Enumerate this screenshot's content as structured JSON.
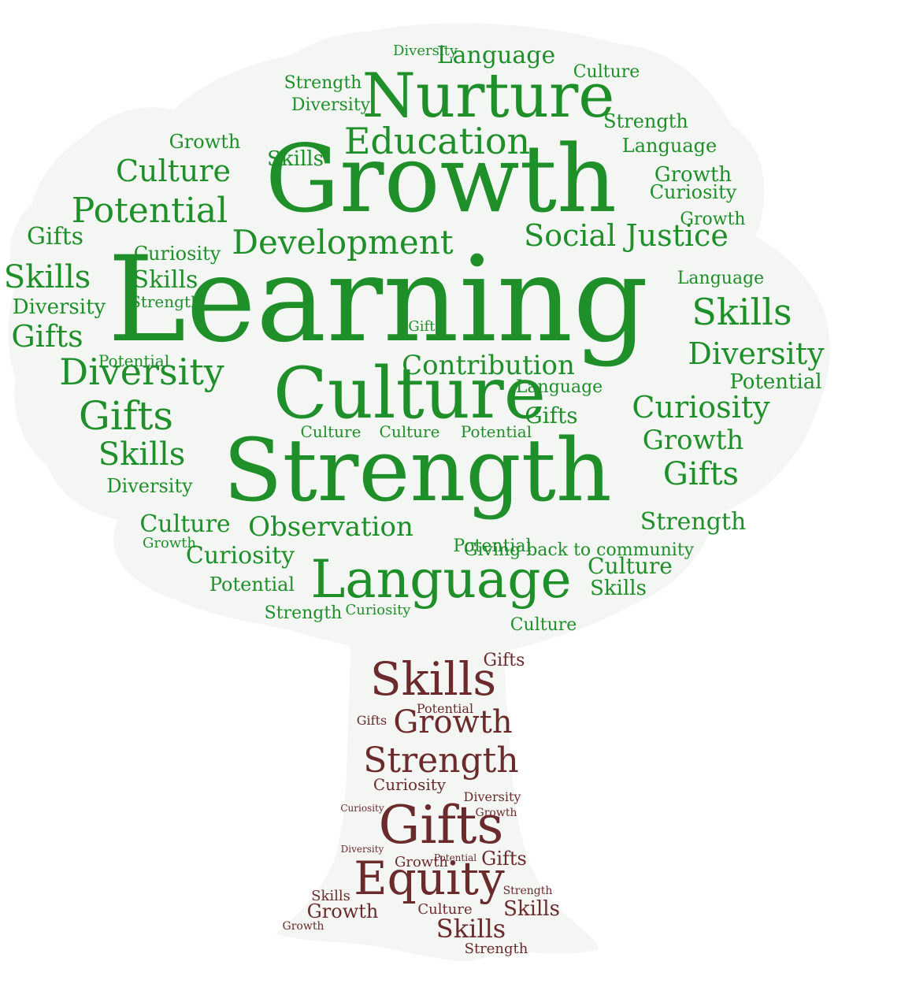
{
  "colors": {
    "background": "#ffffff",
    "canopy_fill": "#f3f6f3",
    "green": "#1f8f2a",
    "brown": "#6b2a2c"
  },
  "canopy_words": [
    {
      "text": "Learning"
    },
    {
      "text": "Growth"
    },
    {
      "text": "Strength"
    },
    {
      "text": "Culture"
    },
    {
      "text": "Nurture"
    },
    {
      "text": "Language"
    },
    {
      "text": "Education"
    },
    {
      "text": "Development"
    },
    {
      "text": "Social Justice"
    },
    {
      "text": "Diversity"
    },
    {
      "text": "Skills"
    },
    {
      "text": "Gifts"
    },
    {
      "text": "Potential"
    },
    {
      "text": "Contribution"
    },
    {
      "text": "Observation"
    },
    {
      "text": "Curiosity"
    },
    {
      "text": "Giving back to community"
    },
    {
      "text": "Diversity"
    },
    {
      "text": "Culture"
    },
    {
      "text": "Language"
    },
    {
      "text": "Skills"
    },
    {
      "text": "Gifts"
    },
    {
      "text": "Strength"
    },
    {
      "text": "Growth"
    },
    {
      "text": "Culture"
    },
    {
      "text": "Potential"
    },
    {
      "text": "Skills"
    },
    {
      "text": "Gifts"
    },
    {
      "text": "Diversity"
    },
    {
      "text": "Curiosity"
    },
    {
      "text": "Growth"
    },
    {
      "text": "Culture"
    },
    {
      "text": "Strength"
    },
    {
      "text": "Curiosity"
    },
    {
      "text": "Potential"
    },
    {
      "text": "Language"
    },
    {
      "text": "Skills"
    },
    {
      "text": "Diversity"
    },
    {
      "text": "Gifts"
    },
    {
      "text": "Culture"
    },
    {
      "text": "Growth"
    },
    {
      "text": "Curiosity"
    },
    {
      "text": "Potential"
    },
    {
      "text": "Strength"
    },
    {
      "text": "Skills"
    },
    {
      "text": "Language"
    },
    {
      "text": "Gifts"
    },
    {
      "text": "Culture"
    },
    {
      "text": "Diversity"
    },
    {
      "text": "Growth"
    },
    {
      "text": "Potential"
    },
    {
      "text": "Strength"
    },
    {
      "text": "Culture"
    },
    {
      "text": "Skills"
    },
    {
      "text": "Curiosity"
    },
    {
      "text": "Language"
    },
    {
      "text": "Potential"
    },
    {
      "text": "Diversity"
    },
    {
      "text": "Gifts"
    },
    {
      "text": "Growth"
    },
    {
      "text": "Strength"
    },
    {
      "text": "Culture"
    }
  ],
  "trunk_words": [
    {
      "text": "Skills"
    },
    {
      "text": "Growth"
    },
    {
      "text": "Strength"
    },
    {
      "text": "Gifts"
    },
    {
      "text": "Equity"
    },
    {
      "text": "Curiosity"
    },
    {
      "text": "Potential"
    },
    {
      "text": "Diversity"
    },
    {
      "text": "Growth"
    },
    {
      "text": "Gifts"
    },
    {
      "text": "Skills"
    },
    {
      "text": "Culture"
    },
    {
      "text": "Growth"
    },
    {
      "text": "Strength"
    },
    {
      "text": "Skills"
    },
    {
      "text": "Gifts"
    },
    {
      "text": "Growth"
    },
    {
      "text": "Strength"
    },
    {
      "text": "Gifts"
    },
    {
      "text": "Skills"
    },
    {
      "text": "Diversity"
    },
    {
      "text": "Growth"
    },
    {
      "text": "Curiosity"
    },
    {
      "text": "Potential"
    }
  ]
}
